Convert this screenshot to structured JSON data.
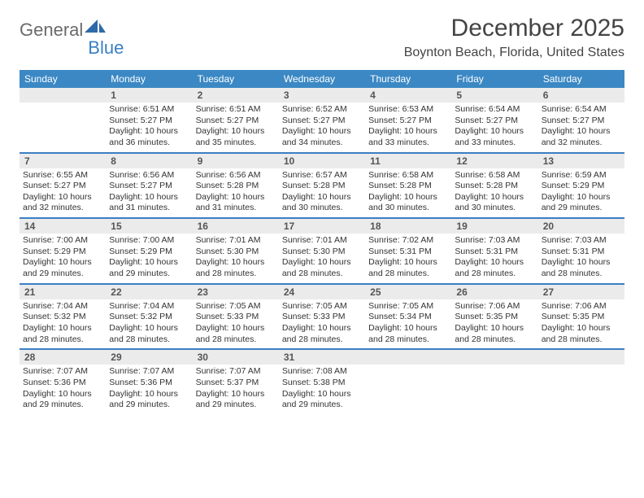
{
  "logo": {
    "part1": "General",
    "part2": "Blue"
  },
  "title": "December 2025",
  "location": "Boynton Beach, Florida, United States",
  "colors": {
    "header_bg": "#3b88c4",
    "header_text": "#ffffff",
    "daynum_bg": "#ebebeb",
    "week_border": "#3b7fc4",
    "body_text": "#333333",
    "logo_gray": "#6a6a6a",
    "logo_blue": "#3b7fc4"
  },
  "weekdays": [
    "Sunday",
    "Monday",
    "Tuesday",
    "Wednesday",
    "Thursday",
    "Friday",
    "Saturday"
  ],
  "weeks": [
    [
      {
        "n": "",
        "sr": "",
        "ss": "",
        "dl": ""
      },
      {
        "n": "1",
        "sr": "Sunrise: 6:51 AM",
        "ss": "Sunset: 5:27 PM",
        "dl": "Daylight: 10 hours and 36 minutes."
      },
      {
        "n": "2",
        "sr": "Sunrise: 6:51 AM",
        "ss": "Sunset: 5:27 PM",
        "dl": "Daylight: 10 hours and 35 minutes."
      },
      {
        "n": "3",
        "sr": "Sunrise: 6:52 AM",
        "ss": "Sunset: 5:27 PM",
        "dl": "Daylight: 10 hours and 34 minutes."
      },
      {
        "n": "4",
        "sr": "Sunrise: 6:53 AM",
        "ss": "Sunset: 5:27 PM",
        "dl": "Daylight: 10 hours and 33 minutes."
      },
      {
        "n": "5",
        "sr": "Sunrise: 6:54 AM",
        "ss": "Sunset: 5:27 PM",
        "dl": "Daylight: 10 hours and 33 minutes."
      },
      {
        "n": "6",
        "sr": "Sunrise: 6:54 AM",
        "ss": "Sunset: 5:27 PM",
        "dl": "Daylight: 10 hours and 32 minutes."
      }
    ],
    [
      {
        "n": "7",
        "sr": "Sunrise: 6:55 AM",
        "ss": "Sunset: 5:27 PM",
        "dl": "Daylight: 10 hours and 32 minutes."
      },
      {
        "n": "8",
        "sr": "Sunrise: 6:56 AM",
        "ss": "Sunset: 5:27 PM",
        "dl": "Daylight: 10 hours and 31 minutes."
      },
      {
        "n": "9",
        "sr": "Sunrise: 6:56 AM",
        "ss": "Sunset: 5:28 PM",
        "dl": "Daylight: 10 hours and 31 minutes."
      },
      {
        "n": "10",
        "sr": "Sunrise: 6:57 AM",
        "ss": "Sunset: 5:28 PM",
        "dl": "Daylight: 10 hours and 30 minutes."
      },
      {
        "n": "11",
        "sr": "Sunrise: 6:58 AM",
        "ss": "Sunset: 5:28 PM",
        "dl": "Daylight: 10 hours and 30 minutes."
      },
      {
        "n": "12",
        "sr": "Sunrise: 6:58 AM",
        "ss": "Sunset: 5:28 PM",
        "dl": "Daylight: 10 hours and 30 minutes."
      },
      {
        "n": "13",
        "sr": "Sunrise: 6:59 AM",
        "ss": "Sunset: 5:29 PM",
        "dl": "Daylight: 10 hours and 29 minutes."
      }
    ],
    [
      {
        "n": "14",
        "sr": "Sunrise: 7:00 AM",
        "ss": "Sunset: 5:29 PM",
        "dl": "Daylight: 10 hours and 29 minutes."
      },
      {
        "n": "15",
        "sr": "Sunrise: 7:00 AM",
        "ss": "Sunset: 5:29 PM",
        "dl": "Daylight: 10 hours and 29 minutes."
      },
      {
        "n": "16",
        "sr": "Sunrise: 7:01 AM",
        "ss": "Sunset: 5:30 PM",
        "dl": "Daylight: 10 hours and 28 minutes."
      },
      {
        "n": "17",
        "sr": "Sunrise: 7:01 AM",
        "ss": "Sunset: 5:30 PM",
        "dl": "Daylight: 10 hours and 28 minutes."
      },
      {
        "n": "18",
        "sr": "Sunrise: 7:02 AM",
        "ss": "Sunset: 5:31 PM",
        "dl": "Daylight: 10 hours and 28 minutes."
      },
      {
        "n": "19",
        "sr": "Sunrise: 7:03 AM",
        "ss": "Sunset: 5:31 PM",
        "dl": "Daylight: 10 hours and 28 minutes."
      },
      {
        "n": "20",
        "sr": "Sunrise: 7:03 AM",
        "ss": "Sunset: 5:31 PM",
        "dl": "Daylight: 10 hours and 28 minutes."
      }
    ],
    [
      {
        "n": "21",
        "sr": "Sunrise: 7:04 AM",
        "ss": "Sunset: 5:32 PM",
        "dl": "Daylight: 10 hours and 28 minutes."
      },
      {
        "n": "22",
        "sr": "Sunrise: 7:04 AM",
        "ss": "Sunset: 5:32 PM",
        "dl": "Daylight: 10 hours and 28 minutes."
      },
      {
        "n": "23",
        "sr": "Sunrise: 7:05 AM",
        "ss": "Sunset: 5:33 PM",
        "dl": "Daylight: 10 hours and 28 minutes."
      },
      {
        "n": "24",
        "sr": "Sunrise: 7:05 AM",
        "ss": "Sunset: 5:33 PM",
        "dl": "Daylight: 10 hours and 28 minutes."
      },
      {
        "n": "25",
        "sr": "Sunrise: 7:05 AM",
        "ss": "Sunset: 5:34 PM",
        "dl": "Daylight: 10 hours and 28 minutes."
      },
      {
        "n": "26",
        "sr": "Sunrise: 7:06 AM",
        "ss": "Sunset: 5:35 PM",
        "dl": "Daylight: 10 hours and 28 minutes."
      },
      {
        "n": "27",
        "sr": "Sunrise: 7:06 AM",
        "ss": "Sunset: 5:35 PM",
        "dl": "Daylight: 10 hours and 28 minutes."
      }
    ],
    [
      {
        "n": "28",
        "sr": "Sunrise: 7:07 AM",
        "ss": "Sunset: 5:36 PM",
        "dl": "Daylight: 10 hours and 29 minutes."
      },
      {
        "n": "29",
        "sr": "Sunrise: 7:07 AM",
        "ss": "Sunset: 5:36 PM",
        "dl": "Daylight: 10 hours and 29 minutes."
      },
      {
        "n": "30",
        "sr": "Sunrise: 7:07 AM",
        "ss": "Sunset: 5:37 PM",
        "dl": "Daylight: 10 hours and 29 minutes."
      },
      {
        "n": "31",
        "sr": "Sunrise: 7:08 AM",
        "ss": "Sunset: 5:38 PM",
        "dl": "Daylight: 10 hours and 29 minutes."
      },
      {
        "n": "",
        "sr": "",
        "ss": "",
        "dl": ""
      },
      {
        "n": "",
        "sr": "",
        "ss": "",
        "dl": ""
      },
      {
        "n": "",
        "sr": "",
        "ss": "",
        "dl": ""
      }
    ]
  ]
}
